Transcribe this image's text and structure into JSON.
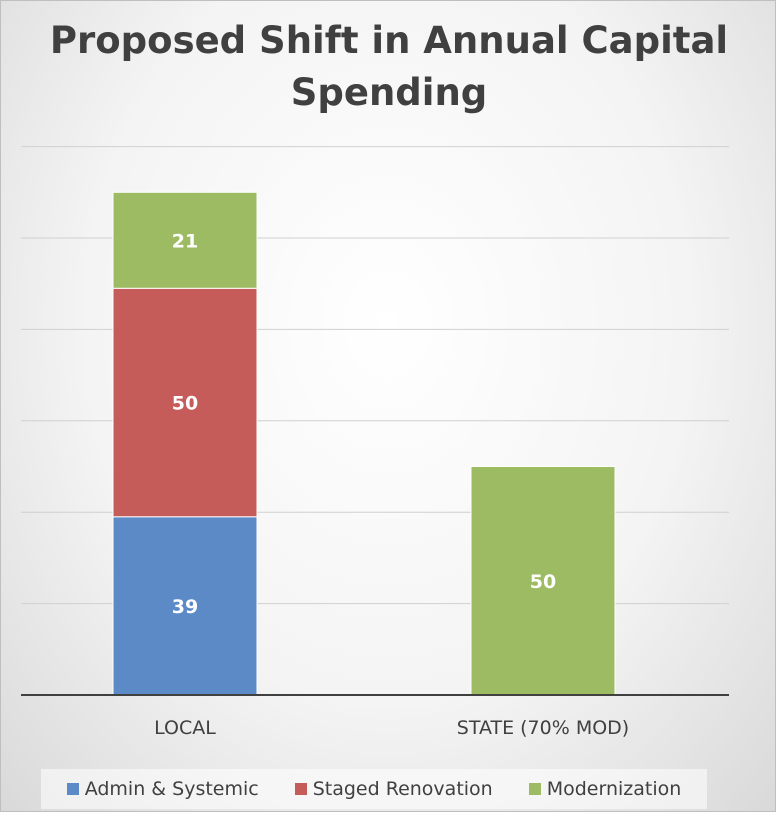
{
  "chart_data": {
    "type": "bar",
    "stacked": true,
    "title": "Proposed Shift in Annual Capital Spending",
    "categories": [
      "LOCAL",
      "STATE (70% MOD)"
    ],
    "series": [
      {
        "name": "Admin & Systemic",
        "values": [
          39,
          0
        ],
        "color": "#5b8ac7"
      },
      {
        "name": "Staged Renovation",
        "values": [
          50,
          0
        ],
        "color": "#c65c5a"
      },
      {
        "name": "Modernization",
        "values": [
          21,
          50
        ],
        "color": "#9cbb63"
      }
    ],
    "ylim": [
      0,
      120
    ],
    "grid": true,
    "legend_position": "bottom"
  }
}
